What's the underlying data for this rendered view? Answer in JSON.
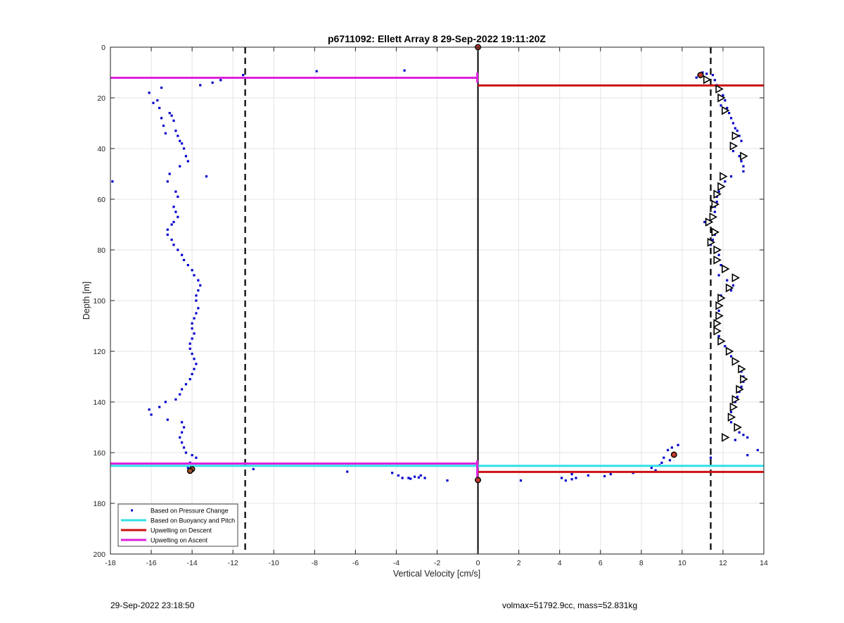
{
  "footer": {
    "left": "29-Sep-2022 23:18:50",
    "right": "volmax=51792.9cc, mass=52.831kg"
  },
  "colors": {
    "pressure": "#0000cc",
    "buoyancy": "#33e0e8",
    "descent": "#cc1111",
    "ascent": "#dd22dd"
  },
  "chart_data": {
    "type": "scatter",
    "title": "p6711092: Ellett Array 8 29-Sep-2022 19:11:20Z",
    "xlabel": "Vertical Velocity [cm/s]",
    "ylabel": "Depth [m]",
    "xlim": [
      -18,
      14
    ],
    "ylim": [
      0,
      200
    ],
    "y_reversed": true,
    "grid": true,
    "x_ticks": [
      "-18",
      "-16",
      "-14",
      "-12",
      "-10",
      "-8",
      "-6",
      "-4",
      "-2",
      "0",
      "2",
      "4",
      "6",
      "8",
      "10",
      "12",
      "14"
    ],
    "y_ticks": [
      "0",
      "20",
      "40",
      "60",
      "80",
      "100",
      "120",
      "140",
      "160",
      "180",
      "200"
    ],
    "legend": {
      "position": "bottom-left",
      "entries": [
        {
          "label": "Based on Pressure Change",
          "kind": "dot",
          "color": "#0000cc"
        },
        {
          "label": "Based on Buoyancy and Pitch",
          "kind": "line",
          "color": "#33e0e8"
        },
        {
          "label": "Upwelling on Descent",
          "kind": "line",
          "color": "#cc1111"
        },
        {
          "label": "Upwelling on Ascent",
          "kind": "line",
          "color": "#dd22dd"
        }
      ]
    },
    "reference_lines": {
      "dashed_x": [
        -11.4,
        11.4
      ],
      "zero_x": 0
    },
    "upwelling_lines": [
      {
        "series": "Upwelling on Ascent",
        "depth": 12.1,
        "x": [
          -18,
          0
        ]
      },
      {
        "series": "Upwelling on Descent",
        "depth": 15.1,
        "x": [
          0,
          14
        ]
      },
      {
        "series": "Based on Buoyancy and Pitch",
        "depth": 165.2,
        "x": [
          -18,
          0
        ]
      },
      {
        "series": "Upwelling on Ascent",
        "depth": 164.3,
        "x": [
          -18,
          0
        ]
      },
      {
        "series": "Based on Buoyancy and Pitch",
        "depth": 165.2,
        "x": [
          0,
          14
        ]
      },
      {
        "series": "Upwelling on Descent",
        "depth": 167.6,
        "x": [
          0,
          14
        ]
      }
    ],
    "ascent_points": [
      [
        -17.9,
        53
      ],
      [
        -16.1,
        18
      ],
      [
        -15.9,
        22
      ],
      [
        -15.7,
        21
      ],
      [
        -15.6,
        24
      ],
      [
        -15.5,
        28
      ],
      [
        -15.4,
        31
      ],
      [
        -15.3,
        34
      ],
      [
        -15.1,
        26
      ],
      [
        -15.0,
        27
      ],
      [
        -14.9,
        29
      ],
      [
        -14.8,
        33
      ],
      [
        -14.7,
        35
      ],
      [
        -14.6,
        37
      ],
      [
        -14.5,
        38
      ],
      [
        -14.4,
        40
      ],
      [
        -14.3,
        43
      ],
      [
        -14.2,
        45
      ],
      [
        -14.6,
        47
      ],
      [
        -15.1,
        50
      ],
      [
        -15.2,
        53
      ],
      [
        -14.8,
        57
      ],
      [
        -14.7,
        59
      ],
      [
        -14.9,
        63
      ],
      [
        -14.8,
        65
      ],
      [
        -14.7,
        67
      ],
      [
        -14.9,
        69
      ],
      [
        -15.0,
        70
      ],
      [
        -15.2,
        72
      ],
      [
        -15.2,
        74
      ],
      [
        -15.0,
        76
      ],
      [
        -14.9,
        78
      ],
      [
        -14.7,
        80
      ],
      [
        -14.5,
        82
      ],
      [
        -14.4,
        84
      ],
      [
        -14.2,
        86
      ],
      [
        -14.0,
        88
      ],
      [
        -13.9,
        90
      ],
      [
        -13.7,
        92
      ],
      [
        -13.6,
        94
      ],
      [
        -13.7,
        96
      ],
      [
        -13.8,
        98
      ],
      [
        -13.8,
        100
      ],
      [
        -13.7,
        103
      ],
      [
        -13.8,
        105
      ],
      [
        -13.9,
        107
      ],
      [
        -14.0,
        109
      ],
      [
        -14.0,
        111
      ],
      [
        -13.9,
        113
      ],
      [
        -14.0,
        115
      ],
      [
        -14.1,
        117
      ],
      [
        -14.1,
        119
      ],
      [
        -14.0,
        121
      ],
      [
        -13.9,
        123
      ],
      [
        -13.8,
        125
      ],
      [
        -13.9,
        127
      ],
      [
        -14.0,
        129
      ],
      [
        -14.1,
        131
      ],
      [
        -14.3,
        133
      ],
      [
        -14.5,
        135
      ],
      [
        -14.6,
        137
      ],
      [
        -14.8,
        139
      ],
      [
        -15.3,
        140
      ],
      [
        -15.6,
        142
      ],
      [
        -16.1,
        143
      ],
      [
        -16.0,
        145
      ],
      [
        -15.2,
        147
      ],
      [
        -14.5,
        148
      ],
      [
        -14.4,
        150
      ],
      [
        -14.5,
        152
      ],
      [
        -14.6,
        154
      ],
      [
        -14.5,
        156
      ],
      [
        -14.4,
        158
      ],
      [
        -14.3,
        160
      ],
      [
        -14.0,
        161
      ],
      [
        -13.8,
        162
      ],
      [
        -14.1,
        164
      ],
      [
        -14.2,
        166
      ],
      [
        -13.3,
        51
      ],
      [
        -15.5,
        16
      ],
      [
        -13.6,
        15
      ],
      [
        -13.0,
        14
      ],
      [
        -12.6,
        13
      ],
      [
        -11.5,
        11
      ],
      [
        -7.9,
        9.5
      ],
      [
        -3.6,
        9.2
      ],
      [
        -11.0,
        166.5
      ],
      [
        -6.4,
        167.5
      ],
      [
        -4.2,
        168
      ],
      [
        -3.9,
        169
      ],
      [
        -3.7,
        170
      ],
      [
        -3.4,
        170
      ],
      [
        -3.1,
        169.5
      ],
      [
        -2.8,
        169
      ],
      [
        -2.6,
        170
      ],
      [
        -1.5,
        171
      ],
      [
        -2.9,
        169.8
      ],
      [
        -3.3,
        170.3
      ]
    ],
    "descent_points": [
      [
        10.7,
        12
      ],
      [
        10.8,
        11
      ],
      [
        11.0,
        10
      ],
      [
        11.2,
        10.5
      ],
      [
        11.5,
        11
      ],
      [
        11.6,
        13
      ],
      [
        11.7,
        15
      ],
      [
        11.8,
        17
      ],
      [
        12.0,
        19
      ],
      [
        12.1,
        21
      ],
      [
        11.9,
        23
      ],
      [
        12.2,
        24
      ],
      [
        12.3,
        26
      ],
      [
        12.4,
        28
      ],
      [
        12.5,
        30
      ],
      [
        12.6,
        32
      ],
      [
        12.7,
        33
      ],
      [
        12.8,
        35
      ],
      [
        12.9,
        37
      ],
      [
        12.6,
        39
      ],
      [
        12.5,
        41
      ],
      [
        12.8,
        43
      ],
      [
        12.9,
        45
      ],
      [
        13.0,
        47
      ],
      [
        13.0,
        49
      ],
      [
        12.4,
        51
      ],
      [
        12.1,
        53
      ],
      [
        11.9,
        55
      ],
      [
        11.8,
        57
      ],
      [
        11.7,
        59
      ],
      [
        11.7,
        61
      ],
      [
        11.6,
        63
      ],
      [
        11.6,
        65
      ],
      [
        11.4,
        67
      ],
      [
        11.1,
        69
      ],
      [
        11.2,
        70
      ],
      [
        11.5,
        72
      ],
      [
        11.6,
        74
      ],
      [
        11.5,
        76
      ],
      [
        11.4,
        78
      ],
      [
        11.7,
        80
      ],
      [
        11.8,
        82
      ],
      [
        11.7,
        84
      ],
      [
        11.9,
        86
      ],
      [
        12.0,
        88
      ],
      [
        11.8,
        90
      ],
      [
        12.2,
        92
      ],
      [
        12.5,
        94
      ],
      [
        12.4,
        96
      ],
      [
        11.9,
        98
      ],
      [
        11.8,
        100
      ],
      [
        11.7,
        102
      ],
      [
        11.8,
        104
      ],
      [
        11.7,
        106
      ],
      [
        11.6,
        108
      ],
      [
        11.6,
        110
      ],
      [
        11.7,
        112
      ],
      [
        11.8,
        114
      ],
      [
        11.9,
        116
      ],
      [
        12.1,
        118
      ],
      [
        12.3,
        120
      ],
      [
        12.4,
        122
      ],
      [
        12.6,
        124
      ],
      [
        12.8,
        126
      ],
      [
        12.9,
        128
      ],
      [
        13.0,
        130
      ],
      [
        13.0,
        132
      ],
      [
        12.9,
        134
      ],
      [
        12.8,
        136
      ],
      [
        12.7,
        138
      ],
      [
        12.6,
        140
      ],
      [
        12.5,
        142
      ],
      [
        12.4,
        144
      ],
      [
        12.3,
        146
      ],
      [
        12.4,
        148
      ],
      [
        12.6,
        150
      ],
      [
        12.8,
        152
      ],
      [
        13.0,
        153
      ],
      [
        13.2,
        154
      ],
      [
        12.6,
        155
      ],
      [
        9.5,
        158
      ],
      [
        9.8,
        157
      ],
      [
        9.3,
        159
      ],
      [
        9.1,
        162
      ],
      [
        9.0,
        164
      ],
      [
        8.9,
        165
      ],
      [
        8.7,
        167
      ],
      [
        8.5,
        166
      ],
      [
        7.6,
        168
      ],
      [
        6.5,
        168.5
      ],
      [
        5.4,
        169
      ],
      [
        4.8,
        170
      ],
      [
        4.6,
        170.5
      ],
      [
        4.3,
        171
      ],
      [
        4.1,
        170
      ],
      [
        2.1,
        171
      ],
      [
        13.7,
        159
      ],
      [
        13.2,
        161
      ],
      [
        11.4,
        162
      ],
      [
        9.4,
        163
      ],
      [
        4.6,
        168.5
      ],
      [
        6.2,
        169.3
      ]
    ],
    "ascent_markers": [
      [
        -14.0,
        166.5
      ],
      [
        -14.1,
        167.2
      ]
    ],
    "descent_markers_right": [
      [
        11.2,
        12.8
      ],
      [
        11.8,
        16.5
      ],
      [
        11.9,
        20
      ],
      [
        12.1,
        25
      ],
      [
        12.6,
        35
      ],
      [
        12.5,
        39
      ],
      [
        13.0,
        43
      ],
      [
        12.0,
        51
      ],
      [
        11.9,
        55
      ],
      [
        11.7,
        58
      ],
      [
        11.6,
        62
      ],
      [
        11.5,
        67
      ],
      [
        11.3,
        69
      ],
      [
        11.6,
        73
      ],
      [
        11.4,
        77
      ],
      [
        11.7,
        80
      ],
      [
        11.7,
        84
      ],
      [
        12.1,
        87.5
      ],
      [
        12.6,
        91
      ],
      [
        12.3,
        95
      ],
      [
        11.9,
        99
      ],
      [
        11.8,
        102
      ],
      [
        11.8,
        106
      ],
      [
        11.7,
        109
      ],
      [
        11.7,
        112
      ],
      [
        11.9,
        116
      ],
      [
        12.3,
        120
      ],
      [
        12.6,
        124
      ],
      [
        12.9,
        127
      ],
      [
        13.0,
        131
      ],
      [
        12.8,
        135
      ],
      [
        12.6,
        139
      ],
      [
        12.5,
        142
      ],
      [
        12.4,
        146
      ],
      [
        12.7,
        150
      ],
      [
        12.1,
        154
      ]
    ],
    "surface_markers": [
      [
        0,
        0
      ],
      [
        0,
        170.8
      ],
      [
        9.6,
        160.8
      ],
      [
        10.9,
        11
      ]
    ]
  }
}
